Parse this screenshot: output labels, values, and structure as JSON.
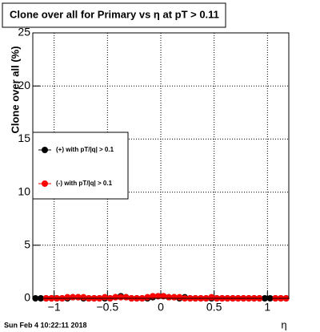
{
  "chart_data": {
    "type": "scatter",
    "title": "Clone  over all for Primary vs  η at pT > 0.11",
    "y_label": "Clone  over all (%)",
    "x_label": "η",
    "timestamp": "Sun Feb  4 10:22:11 2018",
    "x": [
      -1.175,
      -1.125,
      -1.075,
      -1.025,
      -0.975,
      -0.925,
      -0.875,
      -0.825,
      -0.775,
      -0.725,
      -0.675,
      -0.625,
      -0.575,
      -0.525,
      -0.475,
      -0.425,
      -0.375,
      -0.325,
      -0.275,
      -0.225,
      -0.175,
      -0.125,
      -0.075,
      -0.025,
      0.025,
      0.075,
      0.125,
      0.175,
      0.225,
      0.275,
      0.325,
      0.375,
      0.425,
      0.475,
      0.525,
      0.575,
      0.625,
      0.675,
      0.725,
      0.775,
      0.825,
      0.875,
      0.925,
      0.975,
      1.025,
      1.075,
      1.125,
      1.175
    ],
    "series": [
      {
        "name": "(+) with pT/|q| > 0.1",
        "color": "#000000",
        "values": [
          0,
          0,
          0,
          0,
          0,
          0,
          0,
          0.1,
          0.1,
          0,
          0,
          0,
          0,
          0,
          0,
          0.1,
          0.2,
          0.1,
          0,
          0,
          0,
          0,
          0.1,
          0.2,
          0.2,
          0.1,
          0.1,
          0,
          0.1,
          0,
          0,
          0,
          0,
          0,
          0,
          0,
          0,
          0,
          0,
          0,
          0,
          0,
          0,
          0,
          0,
          0,
          0,
          0
        ]
      },
      {
        "name": "(-) with pT/|q| > 0.1",
        "color": "#ff0000",
        "values": [
          null,
          null,
          0,
          0,
          0,
          0,
          0.1,
          0.1,
          0.1,
          0.1,
          0,
          0,
          0,
          0.1,
          0,
          0.1,
          0.1,
          0.1,
          0,
          0,
          0,
          0.1,
          0.2,
          0.2,
          0.2,
          0.1,
          0.1,
          0.1,
          0,
          0,
          0,
          0,
          0,
          0.1,
          0,
          0,
          0,
          0,
          0,
          0,
          0,
          0,
          0,
          null,
          null,
          0,
          0,
          0
        ]
      }
    ],
    "xlim": [
      -1.2,
      1.2
    ],
    "xticks": [
      {
        "value": -1,
        "label": "−1"
      },
      {
        "value": -0.5,
        "label": "−0.5"
      },
      0,
      0.5,
      1
    ],
    "ylim": [
      0,
      25
    ],
    "yticks": [
      0,
      5,
      10,
      15,
      20,
      25
    ],
    "grid": true
  }
}
